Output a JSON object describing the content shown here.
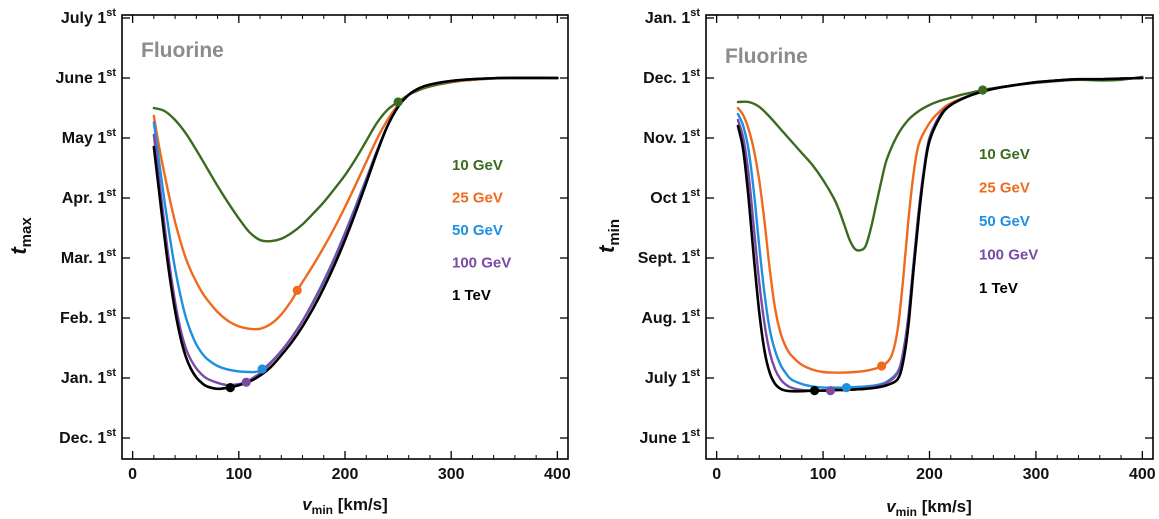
{
  "colors": {
    "10 GeV": "#3a6b1e",
    "25 GeV": "#f06a1e",
    "50 GeV": "#1f8fe0",
    "100 GeV": "#7a4aa6",
    "1 TeV": "#000000"
  },
  "chart_data": [
    {
      "type": "line",
      "title": "Fluorine",
      "xlabel": "v",
      "xlabel_sub": "min",
      "xlabel_unit": " [km/s]",
      "ylabel": "t",
      "ylabel_sub": "max",
      "xlim": [
        -10,
        410
      ],
      "xticks": [
        0,
        100,
        200,
        300,
        400
      ],
      "ylim": [
        -0.35,
        7.05
      ],
      "yticks": [
        {
          "v": 0,
          "label": "Dec. 1",
          "sup": "st"
        },
        {
          "v": 1,
          "label": "Jan. 1",
          "sup": "st"
        },
        {
          "v": 2,
          "label": "Feb. 1",
          "sup": "st"
        },
        {
          "v": 3,
          "label": "Mar. 1",
          "sup": "st"
        },
        {
          "v": 4,
          "label": "Apr. 1",
          "sup": "st"
        },
        {
          "v": 5,
          "label": "May 1",
          "sup": "st"
        },
        {
          "v": 6,
          "label": "June 1",
          "sup": "st"
        },
        {
          "v": 7,
          "label": "July 1",
          "sup": "st"
        }
      ],
      "series": [
        {
          "name": "10 GeV",
          "x": [
            20,
            30,
            40,
            50,
            60,
            70,
            80,
            90,
            100,
            110,
            120,
            130,
            140,
            150,
            160,
            170,
            180,
            190,
            200,
            210,
            220,
            230,
            240,
            250,
            260,
            270,
            280,
            300,
            320,
            350,
            400
          ],
          "y": [
            5.5,
            5.45,
            5.3,
            5.08,
            4.8,
            4.5,
            4.2,
            3.92,
            3.66,
            3.43,
            3.3,
            3.28,
            3.32,
            3.42,
            3.56,
            3.74,
            3.93,
            4.15,
            4.38,
            4.65,
            4.95,
            5.25,
            5.47,
            5.6,
            5.72,
            5.8,
            5.86,
            5.93,
            5.97,
            6.0,
            6.0
          ],
          "marker": {
            "x": 250,
            "y": 5.6
          }
        },
        {
          "name": "25 GeV",
          "x": [
            20,
            25,
            30,
            35,
            40,
            45,
            50,
            55,
            60,
            65,
            70,
            80,
            90,
            100,
            110,
            120,
            130,
            140,
            150,
            155,
            160,
            170,
            180,
            190,
            200,
            210,
            220,
            230,
            240,
            250,
            260,
            270,
            280,
            300,
            320,
            350,
            400
          ],
          "y": [
            5.37,
            4.85,
            4.4,
            3.98,
            3.6,
            3.28,
            3.0,
            2.78,
            2.6,
            2.44,
            2.31,
            2.1,
            1.95,
            1.86,
            1.82,
            1.82,
            1.9,
            2.06,
            2.3,
            2.46,
            2.6,
            2.88,
            3.18,
            3.5,
            3.85,
            4.22,
            4.6,
            4.98,
            5.3,
            5.55,
            5.72,
            5.82,
            5.88,
            5.94,
            5.97,
            6.0,
            6.0
          ],
          "marker": {
            "x": 155,
            "y": 2.46
          }
        },
        {
          "name": "50 GeV",
          "x": [
            20,
            25,
            30,
            35,
            40,
            45,
            50,
            55,
            60,
            65,
            70,
            80,
            90,
            100,
            110,
            115,
            120,
            125,
            130,
            140,
            150,
            160,
            170,
            180,
            190,
            200,
            210,
            220,
            230,
            240,
            250,
            260,
            270,
            280,
            300,
            320,
            350,
            400
          ],
          "y": [
            5.26,
            4.6,
            3.95,
            3.35,
            2.82,
            2.38,
            2.02,
            1.76,
            1.56,
            1.42,
            1.32,
            1.2,
            1.14,
            1.11,
            1.1,
            1.1,
            1.12,
            1.18,
            1.26,
            1.45,
            1.68,
            1.95,
            2.27,
            2.62,
            3.0,
            3.42,
            3.86,
            4.32,
            4.78,
            5.2,
            5.52,
            5.72,
            5.83,
            5.89,
            5.95,
            5.98,
            6.0,
            6.0
          ],
          "marker": {
            "x": 122,
            "y": 1.15
          }
        },
        {
          "name": "100 GeV",
          "x": [
            20,
            25,
            30,
            35,
            40,
            45,
            50,
            55,
            60,
            65,
            70,
            80,
            90,
            100,
            107,
            115,
            120,
            130,
            140,
            150,
            160,
            170,
            180,
            190,
            200,
            210,
            220,
            230,
            240,
            250,
            260,
            270,
            280,
            300,
            320,
            350,
            400
          ],
          "y": [
            5.05,
            4.3,
            3.55,
            2.85,
            2.27,
            1.82,
            1.5,
            1.3,
            1.16,
            1.06,
            0.99,
            0.92,
            0.88,
            0.9,
            0.93,
            1.02,
            1.08,
            1.25,
            1.45,
            1.68,
            1.95,
            2.26,
            2.6,
            2.98,
            3.4,
            3.84,
            4.3,
            4.78,
            5.2,
            5.52,
            5.72,
            5.83,
            5.89,
            5.95,
            5.98,
            6.0,
            6.0
          ],
          "marker": {
            "x": 107,
            "y": 0.93
          }
        },
        {
          "name": "1 TeV",
          "x": [
            20,
            25,
            30,
            35,
            40,
            45,
            50,
            55,
            60,
            65,
            70,
            80,
            90,
            100,
            110,
            120,
            130,
            140,
            150,
            160,
            170,
            180,
            190,
            200,
            210,
            220,
            230,
            240,
            250,
            260,
            270,
            280,
            300,
            320,
            350,
            400
          ],
          "y": [
            4.85,
            4.1,
            3.35,
            2.68,
            2.12,
            1.68,
            1.36,
            1.15,
            1.01,
            0.92,
            0.86,
            0.82,
            0.84,
            0.88,
            0.94,
            1.04,
            1.18,
            1.38,
            1.6,
            1.86,
            2.16,
            2.5,
            2.88,
            3.3,
            3.76,
            4.25,
            4.75,
            5.2,
            5.52,
            5.72,
            5.83,
            5.89,
            5.95,
            5.98,
            6.0,
            6.0
          ],
          "marker": {
            "x": 92,
            "y": 0.84
          }
        }
      ]
    },
    {
      "type": "line",
      "title": "Fluorine",
      "xlabel": "v",
      "xlabel_sub": "min",
      "xlabel_unit": " [km/s]",
      "ylabel": "t",
      "ylabel_sub": "min",
      "xlim": [
        -10,
        410
      ],
      "xticks": [
        0,
        100,
        200,
        300,
        400
      ],
      "ylim": [
        -0.35,
        7.05
      ],
      "yticks": [
        {
          "v": 0,
          "label": "June 1",
          "sup": "st"
        },
        {
          "v": 1,
          "label": "July 1",
          "sup": "st"
        },
        {
          "v": 2,
          "label": "Aug. 1",
          "sup": "st"
        },
        {
          "v": 3,
          "label": "Sept. 1",
          "sup": "st"
        },
        {
          "v": 4,
          "label": "Oct 1",
          "sup": "st"
        },
        {
          "v": 5,
          "label": "Nov. 1",
          "sup": "st"
        },
        {
          "v": 6,
          "label": "Dec. 1",
          "sup": "st"
        },
        {
          "v": 7,
          "label": "Jan. 1",
          "sup": "st"
        }
      ],
      "series": [
        {
          "name": "10 GeV",
          "x": [
            20,
            30,
            40,
            50,
            60,
            70,
            80,
            90,
            100,
            110,
            115,
            120,
            125,
            130,
            135,
            140,
            145,
            150,
            155,
            160,
            170,
            180,
            190,
            200,
            210,
            220,
            230,
            240,
            250,
            260,
            280,
            300,
            320,
            340,
            360,
            380,
            400
          ],
          "y": [
            5.6,
            5.6,
            5.52,
            5.35,
            5.15,
            4.95,
            4.75,
            4.55,
            4.3,
            4.0,
            3.8,
            3.55,
            3.3,
            3.15,
            3.13,
            3.2,
            3.5,
            3.9,
            4.3,
            4.65,
            5.05,
            5.3,
            5.45,
            5.55,
            5.62,
            5.67,
            5.72,
            5.76,
            5.8,
            5.83,
            5.88,
            5.92,
            5.95,
            5.97,
            5.96,
            5.97,
            6.02
          ],
          "marker": {
            "x": 250,
            "y": 5.8
          }
        },
        {
          "name": "25 GeV",
          "x": [
            20,
            25,
            30,
            35,
            40,
            45,
            50,
            55,
            60,
            65,
            70,
            80,
            90,
            100,
            110,
            120,
            130,
            140,
            150,
            155,
            160,
            165,
            170,
            175,
            180,
            185,
            190,
            200,
            210,
            220,
            240,
            260,
            280,
            300,
            320,
            340,
            360,
            380,
            400
          ],
          "y": [
            5.5,
            5.38,
            5.15,
            4.8,
            4.3,
            3.6,
            2.8,
            2.15,
            1.75,
            1.52,
            1.38,
            1.22,
            1.14,
            1.1,
            1.09,
            1.09,
            1.1,
            1.12,
            1.16,
            1.2,
            1.26,
            1.4,
            1.8,
            2.6,
            3.6,
            4.4,
            4.9,
            5.25,
            5.45,
            5.58,
            5.72,
            5.82,
            5.88,
            5.93,
            5.96,
            5.98,
            5.98,
            5.99,
            6.0
          ],
          "marker": {
            "x": 155,
            "y": 1.2
          }
        },
        {
          "name": "50 GeV",
          "x": [
            20,
            25,
            30,
            35,
            40,
            45,
            50,
            55,
            60,
            65,
            70,
            80,
            90,
            100,
            110,
            120,
            130,
            140,
            150,
            160,
            170,
            175,
            180,
            185,
            190,
            195,
            200,
            210,
            220,
            240,
            260,
            280,
            300,
            320,
            340,
            360,
            380,
            400
          ],
          "y": [
            5.4,
            5.2,
            4.8,
            4.1,
            3.2,
            2.4,
            1.8,
            1.45,
            1.22,
            1.08,
            0.98,
            0.9,
            0.86,
            0.84,
            0.84,
            0.84,
            0.85,
            0.86,
            0.88,
            0.94,
            1.1,
            1.4,
            2.0,
            2.9,
            3.8,
            4.5,
            5.0,
            5.38,
            5.55,
            5.72,
            5.82,
            5.88,
            5.93,
            5.96,
            5.98,
            5.98,
            5.99,
            6.0
          ],
          "marker": {
            "x": 122,
            "y": 0.84
          }
        },
        {
          "name": "100 GeV",
          "x": [
            20,
            25,
            30,
            35,
            40,
            45,
            50,
            55,
            60,
            65,
            70,
            80,
            90,
            100,
            107,
            115,
            120,
            130,
            140,
            150,
            160,
            170,
            175,
            180,
            185,
            190,
            195,
            200,
            210,
            220,
            240,
            260,
            280,
            300,
            320,
            340,
            360,
            380,
            400
          ],
          "y": [
            5.3,
            5.0,
            4.4,
            3.5,
            2.6,
            1.9,
            1.42,
            1.14,
            0.98,
            0.89,
            0.84,
            0.8,
            0.79,
            0.79,
            0.79,
            0.8,
            0.8,
            0.81,
            0.83,
            0.86,
            0.92,
            1.08,
            1.4,
            2.0,
            2.9,
            3.8,
            4.5,
            5.0,
            5.38,
            5.55,
            5.72,
            5.82,
            5.88,
            5.93,
            5.96,
            5.98,
            5.98,
            5.99,
            6.0
          ],
          "marker": {
            "x": 107,
            "y": 0.79
          }
        },
        {
          "name": "1 TeV",
          "x": [
            20,
            25,
            30,
            35,
            40,
            45,
            50,
            55,
            60,
            65,
            70,
            80,
            92,
            100,
            110,
            120,
            130,
            140,
            150,
            160,
            170,
            175,
            180,
            185,
            190,
            195,
            200,
            210,
            220,
            240,
            260,
            280,
            300,
            320,
            340,
            360,
            380,
            400
          ],
          "y": [
            5.2,
            4.8,
            4.0,
            3.0,
            2.1,
            1.45,
            1.08,
            0.9,
            0.82,
            0.79,
            0.78,
            0.78,
            0.79,
            0.79,
            0.8,
            0.8,
            0.81,
            0.82,
            0.84,
            0.88,
            0.98,
            1.25,
            1.85,
            2.8,
            3.7,
            4.45,
            4.95,
            5.35,
            5.55,
            5.72,
            5.82,
            5.88,
            5.93,
            5.96,
            5.98,
            5.98,
            5.99,
            6.0
          ],
          "marker": {
            "x": 92,
            "y": 0.79
          }
        }
      ]
    }
  ]
}
